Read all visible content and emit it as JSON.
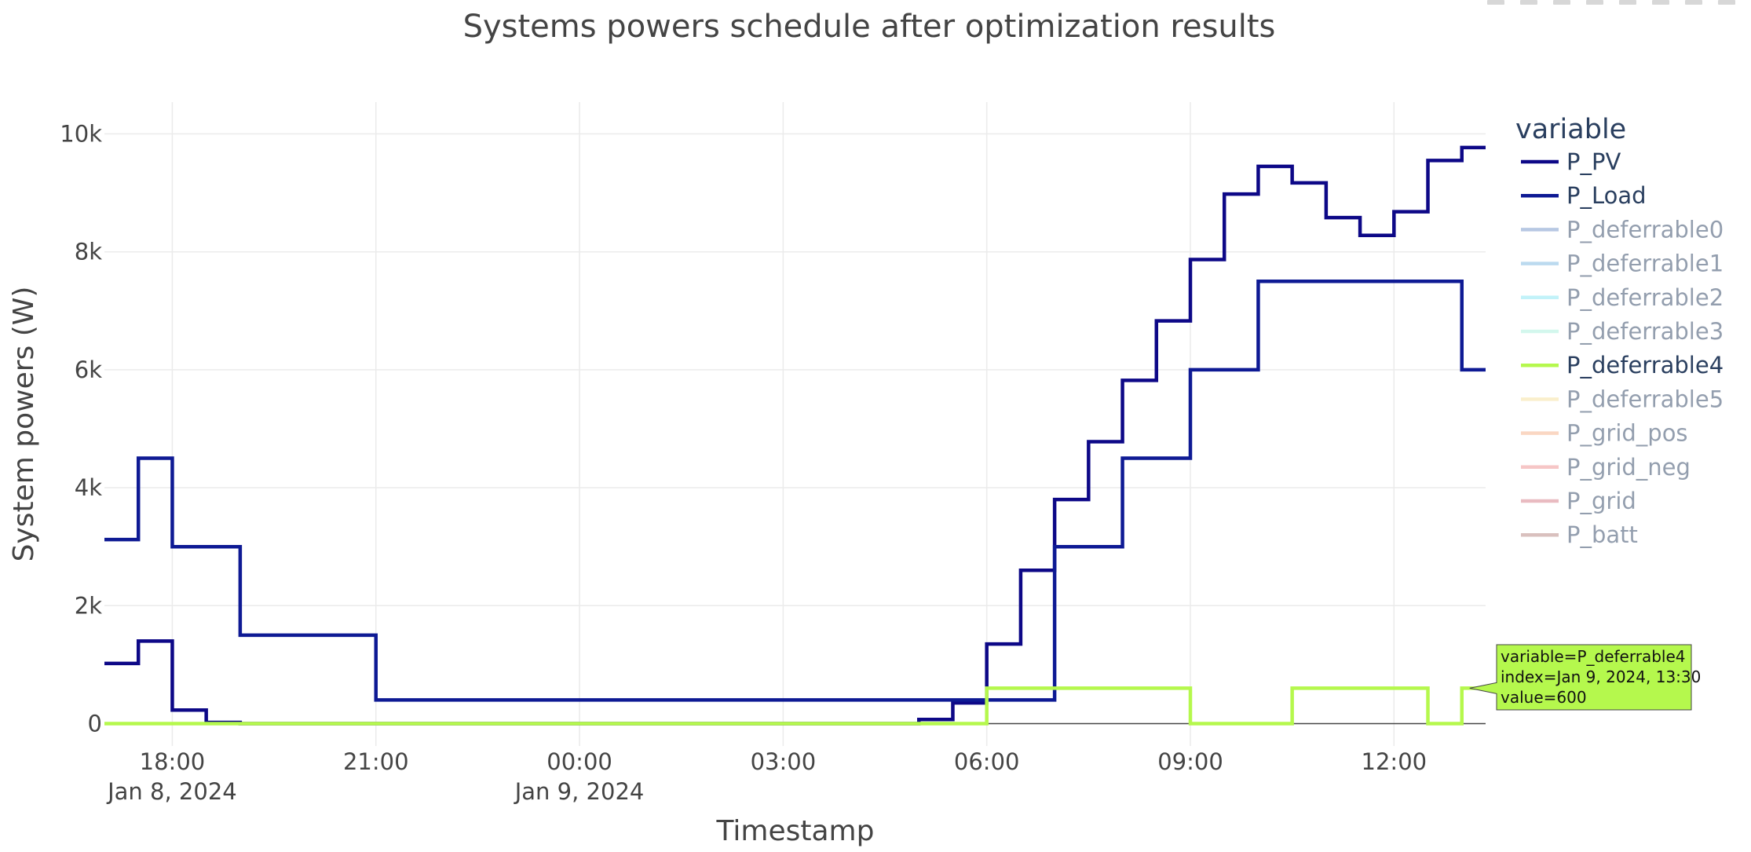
{
  "chart_data": {
    "type": "line",
    "step": "hv",
    "title": "Systems powers schedule after optimization results",
    "xlabel": "Timestamp",
    "ylabel": "System powers (W)",
    "x_start": "2024-01-08T17:00",
    "step_minutes": 30,
    "xlim_hours": [
      0,
      20.35
    ],
    "ylim": [
      -380,
      10540
    ],
    "x_ticks": [
      {
        "hour": 1,
        "label": "18:00",
        "date": "Jan 8, 2024"
      },
      {
        "hour": 4,
        "label": "21:00",
        "date": ""
      },
      {
        "hour": 7,
        "label": "00:00",
        "date": "Jan 9, 2024"
      },
      {
        "hour": 10,
        "label": "03:00",
        "date": ""
      },
      {
        "hour": 13,
        "label": "06:00",
        "date": ""
      },
      {
        "hour": 16,
        "label": "09:00",
        "date": ""
      },
      {
        "hour": 19,
        "label": "12:00",
        "date": ""
      }
    ],
    "y_ticks": [
      {
        "value": 0,
        "label": "0"
      },
      {
        "value": 2000,
        "label": "2k"
      },
      {
        "value": 4000,
        "label": "4k"
      },
      {
        "value": 6000,
        "label": "6k"
      },
      {
        "value": 8000,
        "label": "8k"
      },
      {
        "value": 10000,
        "label": "10k"
      }
    ],
    "legend_title": "variable",
    "legend_position": "right",
    "series": [
      {
        "name": "P_PV",
        "color": "#0d0887",
        "visible": true,
        "values": [
          1020,
          1400,
          230,
          20,
          0,
          0,
          0,
          0,
          0,
          0,
          0,
          0,
          0,
          0,
          0,
          0,
          0,
          0,
          0,
          0,
          0,
          0,
          0,
          0,
          70,
          350,
          1350,
          2600,
          3800,
          4780,
          5820,
          6830,
          7870,
          8980,
          9450,
          9170,
          8580,
          8280,
          8680,
          9550,
          9770
        ]
      },
      {
        "name": "P_Load",
        "color": "#0e1a94",
        "visible": true,
        "values": [
          3120,
          4500,
          3000,
          3000,
          1500,
          1500,
          1500,
          1500,
          400,
          400,
          400,
          400,
          400,
          400,
          400,
          400,
          400,
          400,
          400,
          400,
          400,
          400,
          400,
          400,
          400,
          400,
          400,
          400,
          3000,
          3000,
          4500,
          4500,
          6000,
          6000,
          7500,
          7500,
          7500,
          7500,
          7500,
          7500,
          6000
        ]
      },
      {
        "name": "P_deferrable0",
        "color": "#7193c9",
        "visible": false,
        "values": []
      },
      {
        "name": "P_deferrable1",
        "color": "#7ab7e0",
        "visible": false,
        "values": []
      },
      {
        "name": "P_deferrable2",
        "color": "#86e6f4",
        "visible": false,
        "values": []
      },
      {
        "name": "P_deferrable3",
        "color": "#a9f1dc",
        "visible": false,
        "values": []
      },
      {
        "name": "P_deferrable4",
        "color": "#b5f84d",
        "visible": true,
        "values": [
          0,
          0,
          0,
          0,
          0,
          0,
          0,
          0,
          0,
          0,
          0,
          0,
          0,
          0,
          0,
          0,
          0,
          0,
          0,
          0,
          0,
          0,
          0,
          0,
          0,
          0,
          600,
          600,
          600,
          600,
          600,
          600,
          0,
          0,
          0,
          600,
          600,
          600,
          600,
          0,
          600
        ]
      },
      {
        "name": "P_deferrable5",
        "color": "#f7e19a",
        "visible": false,
        "values": []
      },
      {
        "name": "P_grid_pos",
        "color": "#f6b088",
        "visible": false,
        "values": []
      },
      {
        "name": "P_grid_neg",
        "color": "#ee8f8f",
        "visible": false,
        "values": []
      },
      {
        "name": "P_grid",
        "color": "#d57a84",
        "visible": false,
        "values": []
      },
      {
        "name": "P_batt",
        "color": "#b5827f",
        "visible": false,
        "values": []
      }
    ],
    "hover": {
      "series": "P_deferrable4",
      "lines": [
        "variable=P_deferrable4",
        "index=Jan 9, 2024, 13:30",
        "value=600"
      ]
    }
  }
}
